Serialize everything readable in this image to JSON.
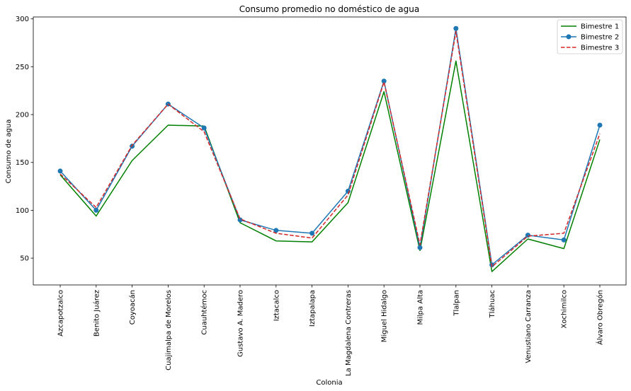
{
  "chart_data": {
    "type": "line",
    "title": "Consumo promedio no doméstico de agua",
    "xlabel": "Colonia",
    "ylabel": "Consumo de agua",
    "ylim": [
      22,
      302
    ],
    "yticks": [
      50,
      100,
      150,
      200,
      250,
      300
    ],
    "grid": false,
    "legend_position": "top-right",
    "categories": [
      "Azcapotzalco",
      "Benito Juárez",
      "Coyoacán",
      "Cuajimalpa de Morelos",
      "Cuauhtémoc",
      "Gustavo A. Madero",
      "Iztacalco",
      "Iztapalapa",
      "La Magdalena Contreras",
      "Miguel Hidalgo",
      "Milpa Alta",
      "Tlalpan",
      "Tláhuac",
      "Venustiano Carranza",
      "Xochimilco",
      "Álvaro Obregón"
    ],
    "series": [
      {
        "name": "Bimestre 1",
        "color": "#008000",
        "style": "solid",
        "marker": "none",
        "values": [
          137,
          94,
          152,
          189,
          188,
          87,
          68,
          67,
          108,
          224,
          58,
          256,
          36,
          70,
          60,
          174
        ]
      },
      {
        "name": "Bimestre 2",
        "color": "#1f77b4",
        "style": "solid",
        "marker": "circle",
        "values": [
          141,
          100,
          167,
          211,
          186,
          90,
          79,
          76,
          120,
          235,
          61,
          290,
          43,
          74,
          69,
          189
        ]
      },
      {
        "name": "Bimestre 3",
        "color": "#d62728",
        "style": "dashed",
        "marker": "none",
        "values": [
          138,
          103,
          168,
          211,
          182,
          91,
          76,
          71,
          116,
          234,
          64,
          287,
          41,
          73,
          76,
          180
        ]
      }
    ]
  }
}
